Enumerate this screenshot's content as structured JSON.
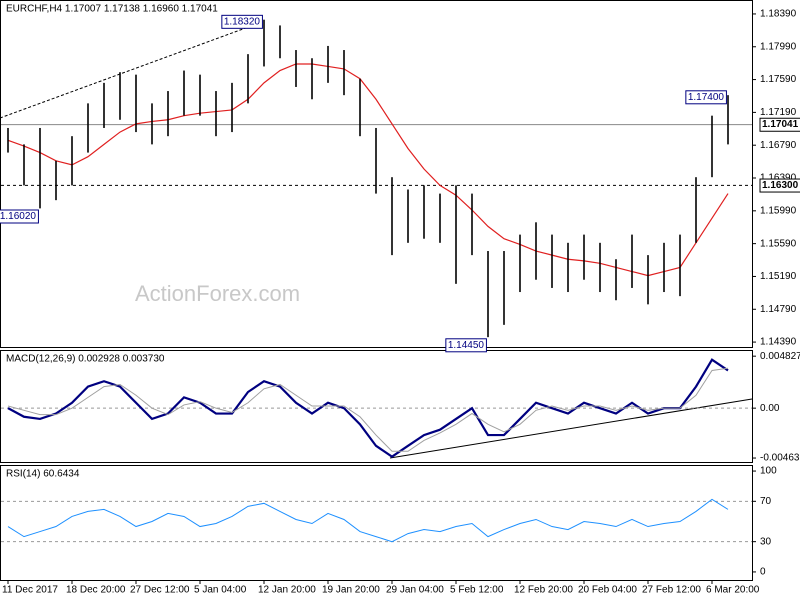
{
  "chart_data": [
    {
      "type": "range",
      "title": "EURCHF,H4  1.17007 1.17138 1.16960 1.17041",
      "watermark": "ActionForex.com",
      "color": "#000000",
      "highs": [
        1.17,
        1.168,
        1.17,
        1.166,
        1.169,
        1.173,
        1.1755,
        1.1768,
        1.1765,
        1.173,
        1.1745,
        1.177,
        1.1765,
        1.1745,
        1.1755,
        1.179,
        1.1832,
        1.1825,
        1.1795,
        1.1785,
        1.18,
        1.1795,
        1.176,
        1.17,
        1.164,
        1.1625,
        1.163,
        1.162,
        1.163,
        1.162,
        1.155,
        1.155,
        1.157,
        1.1585,
        1.157,
        1.156,
        1.157,
        1.156,
        1.154,
        1.157,
        1.1545,
        1.156,
        1.157,
        1.164,
        1.1715,
        1.174
      ],
      "lows": [
        1.167,
        1.163,
        1.1602,
        1.1612,
        1.163,
        1.167,
        1.17,
        1.171,
        1.1695,
        1.168,
        1.169,
        1.1715,
        1.1715,
        1.169,
        1.1695,
        1.173,
        1.1775,
        1.1785,
        1.175,
        1.1735,
        1.1755,
        1.174,
        1.169,
        1.162,
        1.1545,
        1.156,
        1.1565,
        1.156,
        1.151,
        1.1545,
        1.1445,
        1.146,
        1.15,
        1.1515,
        1.1505,
        1.15,
        1.1515,
        1.15,
        1.149,
        1.1505,
        1.1485,
        1.15,
        1.1495,
        1.156,
        1.164,
        1.168
      ],
      "ma": {
        "color": "#e02020",
        "values": [
          1.1685,
          1.1678,
          1.167,
          1.166,
          1.1655,
          1.1665,
          1.168,
          1.1695,
          1.1705,
          1.1708,
          1.171,
          1.1715,
          1.1718,
          1.172,
          1.1722,
          1.1735,
          1.1755,
          1.177,
          1.1778,
          1.1778,
          1.1775,
          1.1772,
          1.176,
          1.1735,
          1.1705,
          1.1675,
          1.165,
          1.163,
          1.1618,
          1.16,
          1.158,
          1.1565,
          1.1558,
          1.155,
          1.1545,
          1.154,
          1.1538,
          1.1535,
          1.153,
          1.1525,
          1.152,
          1.1525,
          1.153,
          1.156,
          1.159,
          1.162
        ]
      },
      "annotations": [
        {
          "value": 1.1832,
          "label": "1.18320"
        },
        {
          "value": 1.174,
          "label": "1.17400"
        },
        {
          "value": 1.1602,
          "label": "1.16020"
        },
        {
          "value": 1.1445,
          "label": "1.14450"
        }
      ],
      "levels": [
        {
          "value": 1.17041,
          "label": "1.17041",
          "style": "solid"
        },
        {
          "value": 1.163,
          "label": "1.16300",
          "style": "dashed"
        }
      ],
      "ylim": [
        1.1433,
        1.1856
      ],
      "yticks": [
        {
          "value": 1.1839,
          "label": "1.18390"
        },
        {
          "value": 1.1799,
          "label": "1.17990"
        },
        {
          "value": 1.1759,
          "label": "1.17590"
        },
        {
          "value": 1.1719,
          "label": "1.17190"
        },
        {
          "value": 1.1679,
          "label": "1.16790"
        },
        {
          "value": 1.1639,
          "label": "1.16390"
        },
        {
          "value": 1.1599,
          "label": "1.15990"
        },
        {
          "value": 1.1559,
          "label": "1.15590"
        },
        {
          "value": 1.1519,
          "label": "1.15190"
        },
        {
          "value": 1.1479,
          "label": "1.14790"
        },
        {
          "value": 1.1439,
          "label": "1.14390"
        }
      ]
    },
    {
      "type": "line",
      "title": "MACD(12,26,9) 0.002928 0.003730",
      "series": [
        {
          "color": "#000080",
          "width": 2.2,
          "values": [
            0.0,
            -0.0008,
            -0.001,
            -0.0005,
            0.0005,
            0.002,
            0.0025,
            0.002,
            0.0005,
            -0.001,
            -0.0005,
            0.001,
            0.0005,
            -0.0005,
            -0.0005,
            0.0015,
            0.0025,
            0.002,
            0.0005,
            -0.0005,
            0.0005,
            0.0,
            -0.0015,
            -0.0035,
            -0.0045,
            -0.0035,
            -0.0025,
            -0.002,
            -0.001,
            0.0,
            -0.0025,
            -0.0025,
            -0.001,
            0.0005,
            0.0,
            -0.0005,
            0.0005,
            0.0,
            -0.0005,
            0.0005,
            -0.0005,
            0.0,
            0.0,
            0.002,
            0.0045,
            0.0035
          ]
        },
        {
          "color": "#a0a0a0",
          "width": 1,
          "values": [
            0.0002,
            -0.0002,
            -0.0006,
            -0.0006,
            0.0,
            0.001,
            0.002,
            0.0022,
            0.0012,
            0.0,
            -0.0006,
            0.0003,
            0.0006,
            0.0,
            -0.0004,
            0.0005,
            0.0018,
            0.0022,
            0.0012,
            0.0002,
            0.0002,
            0.0002,
            -0.0008,
            -0.0025,
            -0.004,
            -0.004,
            -0.003,
            -0.0023,
            -0.0015,
            -0.0005,
            -0.0015,
            -0.0022,
            -0.0015,
            -0.0002,
            0.0002,
            -0.0002,
            0.0002,
            0.0002,
            -0.0002,
            0.0002,
            -0.0002,
            0.0,
            0.0,
            0.0012,
            0.0035,
            0.0037
          ]
        }
      ],
      "ylim": [
        -0.005,
        0.0054
      ],
      "yticks": [
        0.004827,
        {
          "value": 0,
          "label": "0.00"
        },
        -0.004632
      ],
      "levels": [
        0
      ]
    },
    {
      "type": "line",
      "title": "RSI(14) 60.6434",
      "categories": [
        "11 Dec 2017",
        null,
        null,
        null,
        "18 Dec 20:00",
        null,
        null,
        null,
        "27 Dec 12:00",
        null,
        null,
        null,
        "5 Jan 04:00",
        null,
        null,
        null,
        "12 Jan 20:00",
        null,
        null,
        null,
        "19 Jan 20:00",
        null,
        null,
        null,
        "29 Jan 04:00",
        null,
        null,
        null,
        "5 Feb 12:00",
        null,
        null,
        null,
        "12 Feb 20:00",
        null,
        null,
        null,
        "20 Feb 04:00",
        null,
        null,
        null,
        "27 Feb 12:00",
        null,
        null,
        null,
        "6 Mar 20:00",
        null
      ],
      "series": [
        {
          "color": "#1e90ff",
          "width": 1,
          "values": [
            45,
            35,
            40,
            45,
            55,
            60,
            62,
            55,
            45,
            50,
            58,
            55,
            45,
            48,
            55,
            65,
            68,
            60,
            52,
            48,
            58,
            52,
            40,
            35,
            30,
            38,
            42,
            40,
            45,
            48,
            35,
            42,
            48,
            52,
            45,
            42,
            50,
            48,
            45,
            52,
            45,
            48,
            50,
            60,
            72,
            62
          ]
        }
      ],
      "ylim": [
        -8,
        106
      ],
      "yticks": [
        100,
        70,
        30,
        0
      ],
      "levels": [
        70,
        30
      ]
    }
  ]
}
